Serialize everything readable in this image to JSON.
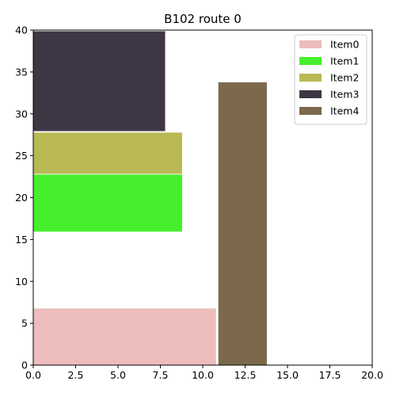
{
  "chart_data": {
    "type": "bar",
    "title": "B102 route 0",
    "xlabel": "",
    "ylabel": "",
    "xlim": [
      0,
      20
    ],
    "ylim": [
      0,
      40
    ],
    "xticks": [
      "0.0",
      "2.5",
      "5.0",
      "7.5",
      "10.0",
      "12.5",
      "15.0",
      "17.5",
      "20.0"
    ],
    "yticks": [
      "0",
      "5",
      "10",
      "15",
      "20",
      "25",
      "30",
      "35",
      "40"
    ],
    "grid": false,
    "legend_position": "top-right",
    "series": [
      {
        "name": "Item0",
        "color": "#ecbdbc",
        "rect": {
          "x": 0.0,
          "y": 0.0,
          "width": 10.8,
          "height": 6.8
        }
      },
      {
        "name": "Item1",
        "color": "#46ef2c",
        "rect": {
          "x": 0.0,
          "y": 15.9,
          "width": 8.8,
          "height": 6.9
        }
      },
      {
        "name": "Item2",
        "color": "#b8b952",
        "rect": {
          "x": 0.0,
          "y": 22.8,
          "width": 8.8,
          "height": 5.0
        }
      },
      {
        "name": "Item3",
        "color": "#3e3644",
        "rect": {
          "x": 0.0,
          "y": 27.9,
          "width": 7.8,
          "height": 12.0
        }
      },
      {
        "name": "Item4",
        "color": "#7c694c",
        "rect": {
          "x": 10.9,
          "y": 0.0,
          "width": 2.9,
          "height": 33.8
        }
      }
    ]
  }
}
